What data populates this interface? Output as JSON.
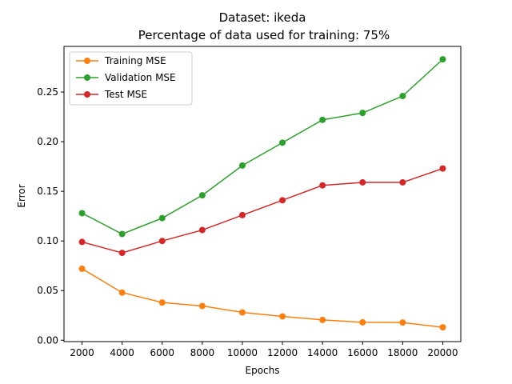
{
  "chart_data": {
    "type": "line",
    "title_line1": "Dataset: ikeda",
    "title_line2": "Percentage of data used for training: 75%",
    "xlabel": "Epochs",
    "ylabel": "Error",
    "x": [
      2000,
      4000,
      6000,
      8000,
      10000,
      12000,
      14000,
      16000,
      18000,
      20000
    ],
    "xticks": [
      2000,
      4000,
      6000,
      8000,
      10000,
      12000,
      14000,
      16000,
      18000,
      20000
    ],
    "yticks": [
      0.0,
      0.05,
      0.1,
      0.15,
      0.2,
      0.25
    ],
    "xlim": [
      1100,
      20900
    ],
    "ylim": [
      -0.0014,
      0.296
    ],
    "grid": false,
    "legend_position": "top-left",
    "series": [
      {
        "name": "Training MSE",
        "color": "#ff7f0e",
        "values": [
          0.072,
          0.048,
          0.038,
          0.0345,
          0.028,
          0.024,
          0.0205,
          0.018,
          0.0178,
          0.013
        ]
      },
      {
        "name": "Validation MSE",
        "color": "#2ca02c",
        "values": [
          0.128,
          0.107,
          0.123,
          0.146,
          0.176,
          0.199,
          0.222,
          0.229,
          0.246,
          0.283
        ]
      },
      {
        "name": "Test MSE",
        "color": "#d62728",
        "values": [
          0.099,
          0.088,
          0.1,
          0.111,
          0.126,
          0.141,
          0.156,
          0.159,
          0.159,
          0.173
        ]
      }
    ]
  }
}
